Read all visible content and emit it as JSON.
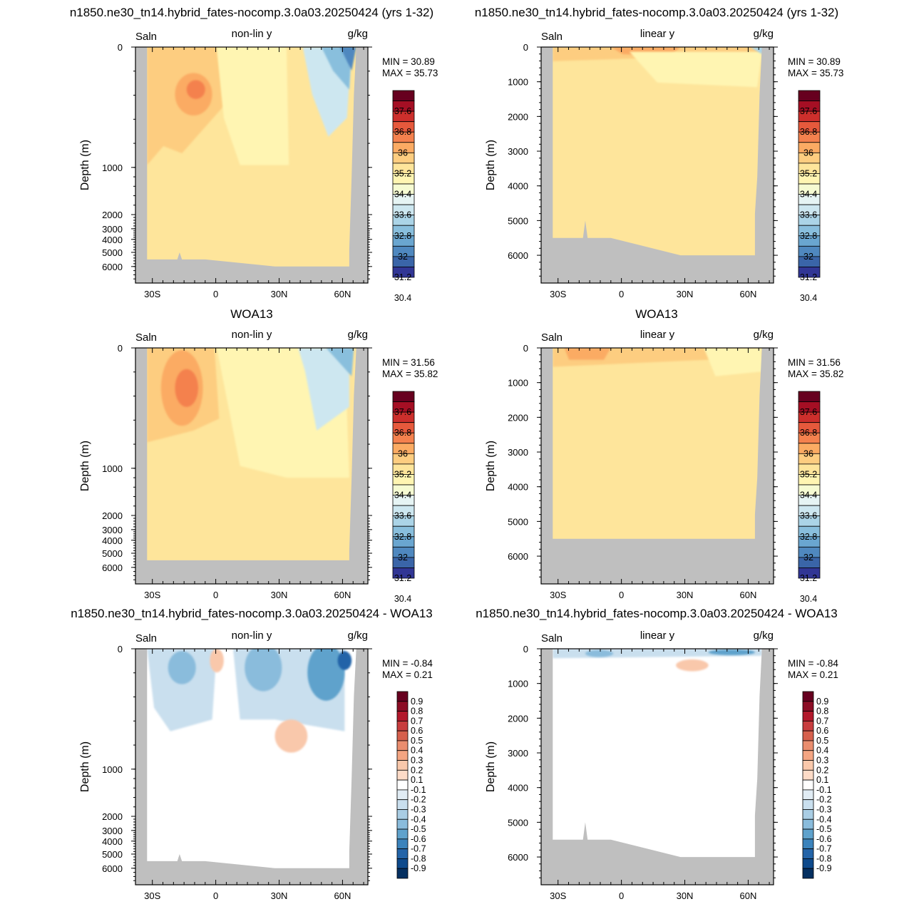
{
  "row_titles": [
    [
      "n1850.ne30_tn14.hybrid_fates-nocomp.3.0a03.20250424 (yrs 1-32)",
      "n1850.ne30_tn14.hybrid_fates-nocomp.3.0a03.20250424 (yrs 1-32)"
    ],
    [
      "WOA13",
      "WOA13"
    ],
    [
      "n1850.ne30_tn14.hybrid_fates-nocomp.3.0a03.20250424 - WOA13",
      "n1850.ne30_tn14.hybrid_fates-nocomp.3.0a03.20250424 - WOA13"
    ]
  ],
  "chart_data": [
    {
      "type": "contour",
      "variable": "Saln",
      "units": "g/kg",
      "scale_label": "non-lin y",
      "ylabel": "Depth (m)",
      "x_ticks": [
        "30S",
        "0",
        "30N",
        "60N"
      ],
      "y_ticks": [
        "0",
        "1000",
        "2000",
        "3000",
        "4000",
        "5000",
        "6000"
      ],
      "min_label": "MIN =  30.89",
      "max_label": "MAX =  35.73",
      "colorbar": [
        "37.6",
        "36.8",
        "36",
        "35.2",
        "34.4",
        "33.6",
        "32.8",
        "32",
        "31.2",
        "30.4"
      ]
    },
    {
      "type": "contour",
      "variable": "Saln",
      "units": "g/kg",
      "scale_label": "linear y",
      "ylabel": "Depth (m)",
      "x_ticks": [
        "30S",
        "0",
        "30N",
        "60N"
      ],
      "y_ticks": [
        "0",
        "1000",
        "2000",
        "3000",
        "4000",
        "5000",
        "6000"
      ],
      "min_label": "MIN =  30.89",
      "max_label": "MAX =  35.73",
      "colorbar": [
        "37.6",
        "36.8",
        "36",
        "35.2",
        "34.4",
        "33.6",
        "32.8",
        "32",
        "31.2",
        "30.4"
      ]
    },
    {
      "type": "contour",
      "variable": "Saln",
      "units": "g/kg",
      "scale_label": "non-lin y",
      "ylabel": "Depth (m)",
      "x_ticks": [
        "30S",
        "0",
        "30N",
        "60N"
      ],
      "y_ticks": [
        "0",
        "1000",
        "2000",
        "3000",
        "4000",
        "5000",
        "6000"
      ],
      "min_label": "MIN =  31.56",
      "max_label": "MAX =  35.82",
      "colorbar": [
        "37.6",
        "36.8",
        "36",
        "35.2",
        "34.4",
        "33.6",
        "32.8",
        "32",
        "31.2",
        "30.4"
      ]
    },
    {
      "type": "contour",
      "variable": "Saln",
      "units": "g/kg",
      "scale_label": "linear y",
      "ylabel": "Depth (m)",
      "x_ticks": [
        "30S",
        "0",
        "30N",
        "60N"
      ],
      "y_ticks": [
        "0",
        "1000",
        "2000",
        "3000",
        "4000",
        "5000",
        "6000"
      ],
      "min_label": "MIN =  31.56",
      "max_label": "MAX =  35.82",
      "colorbar": [
        "37.6",
        "36.8",
        "36",
        "35.2",
        "34.4",
        "33.6",
        "32.8",
        "32",
        "31.2",
        "30.4"
      ]
    },
    {
      "type": "contour",
      "variable": "Saln",
      "units": "g/kg",
      "scale_label": "non-lin y",
      "ylabel": "Depth (m)",
      "x_ticks": [
        "30S",
        "0",
        "30N",
        "60N"
      ],
      "y_ticks": [
        "0",
        "1000",
        "2000",
        "3000",
        "4000",
        "5000",
        "6000"
      ],
      "min_label": "MIN =  -0.84",
      "max_label": "MAX =   0.21",
      "colorbar": [
        "0.9",
        "0.8",
        "0.7",
        "0.6",
        "0.5",
        "0.4",
        "0.3",
        "0.2",
        "0.1",
        "-0.1",
        "-0.2",
        "-0.3",
        "-0.4",
        "-0.5",
        "-0.6",
        "-0.7",
        "-0.8",
        "-0.9"
      ]
    },
    {
      "type": "contour",
      "variable": "Saln",
      "units": "g/kg",
      "scale_label": "linear y",
      "ylabel": "Depth (m)",
      "x_ticks": [
        "30S",
        "0",
        "30N",
        "60N"
      ],
      "y_ticks": [
        "0",
        "1000",
        "2000",
        "3000",
        "4000",
        "5000",
        "6000"
      ],
      "min_label": "MIN =  -0.84",
      "max_label": "MAX =   0.21",
      "colorbar": [
        "0.9",
        "0.8",
        "0.7",
        "0.6",
        "0.5",
        "0.4",
        "0.3",
        "0.2",
        "0.1",
        "-0.1",
        "-0.2",
        "-0.3",
        "-0.4",
        "-0.5",
        "-0.6",
        "-0.7",
        "-0.8",
        "-0.9"
      ]
    }
  ],
  "colors": {
    "land": "#bfbfbf",
    "salinity_scale": [
      "#67001f",
      "#a50f24",
      "#cc2f2c",
      "#e6593c",
      "#f4814e",
      "#fbab63",
      "#fdcd80",
      "#fee59b",
      "#fff5b2",
      "#f6fbd2",
      "#e6f4f4",
      "#cde7f0",
      "#abd4e7",
      "#89bfdd",
      "#6aa6d0",
      "#4f88bf",
      "#3a65a8",
      "#313695"
    ],
    "diff_scale": [
      "#67001f",
      "#8c0d25",
      "#b2182b",
      "#c83d3e",
      "#d6604d",
      "#ea8d6e",
      "#f4a582",
      "#f9c8ab",
      "#fddbc7",
      "#ffffff",
      "#e1ecf4",
      "#c9dfee",
      "#a9cde4",
      "#8abcdc",
      "#5fa2cc",
      "#3b83bc",
      "#2364a8",
      "#0e4a8c",
      "#053061"
    ]
  }
}
